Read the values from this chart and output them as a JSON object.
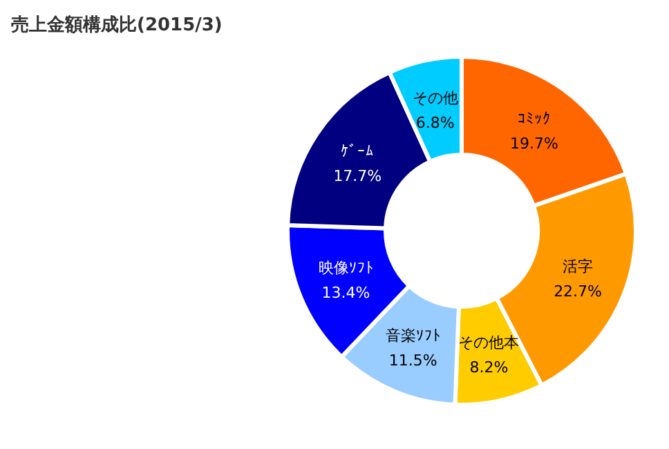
{
  "chart_data": {
    "type": "donut",
    "title": "売上金額構成比(2015/3)",
    "categories": [
      "ｺﾐｯｸ",
      "活字",
      "その他本",
      "音楽ｿﾌﾄ",
      "映像ｿﾌﾄ",
      "ｹﾞｰﾑ",
      "その他"
    ],
    "values": [
      19.7,
      22.7,
      8.2,
      11.5,
      13.4,
      17.7,
      6.8
    ],
    "colors": [
      "#ff6600",
      "#ff9900",
      "#ffcc00",
      "#99ccff",
      "#0000ff",
      "#000080",
      "#00ccff"
    ],
    "value_labels": [
      "19.7%",
      "22.7%",
      "8.2%",
      "11.5%",
      "13.4%",
      "17.7%",
      "6.8%"
    ],
    "legend": false
  }
}
